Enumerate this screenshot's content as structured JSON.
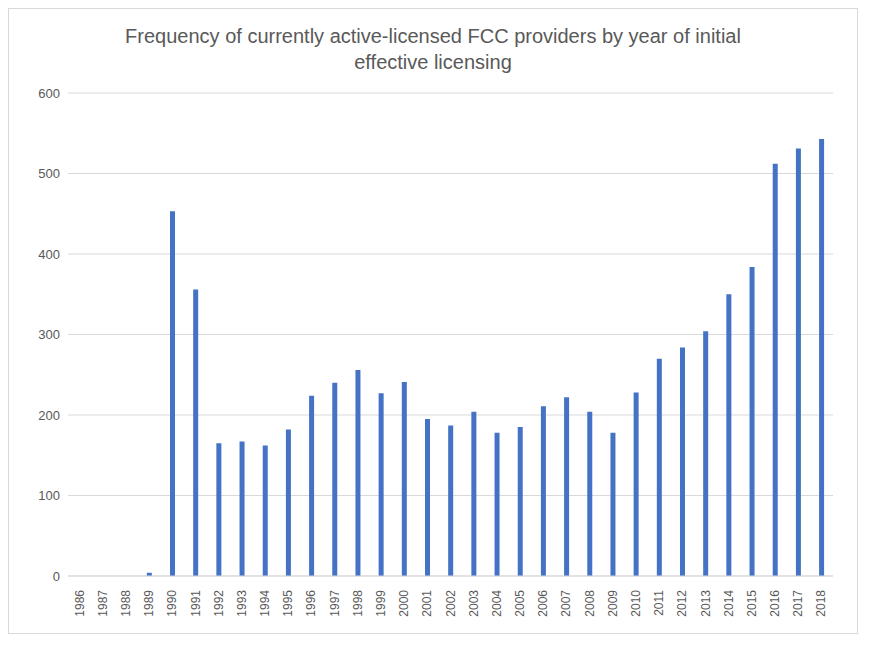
{
  "chart_data": {
    "type": "bar",
    "title": "Frequency of currently active-licensed FCC providers by year of initial effective licensing",
    "categories": [
      "1986",
      "1987",
      "1988",
      "1989",
      "1990",
      "1991",
      "1992",
      "1993",
      "1994",
      "1995",
      "1996",
      "1997",
      "1998",
      "1999",
      "2000",
      "2001",
      "2002",
      "2003",
      "2004",
      "2005",
      "2006",
      "2007",
      "2008",
      "2009",
      "2010",
      "2011",
      "2012",
      "2013",
      "2014",
      "2015",
      "2016",
      "2017",
      "2018"
    ],
    "values": [
      0,
      0,
      0,
      4,
      453,
      356,
      165,
      167,
      162,
      182,
      224,
      240,
      256,
      227,
      241,
      195,
      187,
      204,
      178,
      185,
      211,
      222,
      204,
      178,
      228,
      270,
      284,
      304,
      350,
      384,
      512,
      531,
      543
    ],
    "color": "#4472c4",
    "ylim": [
      0,
      600
    ],
    "yticks": [
      0,
      100,
      200,
      300,
      400,
      500,
      600
    ],
    "grid": true
  }
}
